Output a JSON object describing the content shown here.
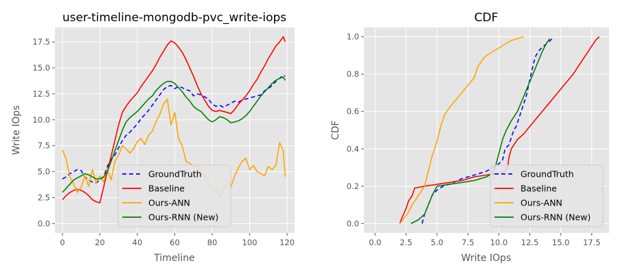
{
  "chart_data": [
    {
      "type": "line",
      "title": "user-timeline-mongodb-pvc_write-iops",
      "xlabel": "Timeline",
      "ylabel": "Write IOps",
      "xlim": [
        -4,
        124
      ],
      "ylim": [
        -0.9,
        18.9
      ],
      "xticks": [
        0,
        20,
        40,
        60,
        80,
        100,
        120
      ],
      "yticks": [
        0.0,
        2.5,
        5.0,
        7.5,
        10.0,
        12.5,
        15.0,
        17.5
      ],
      "ytick_labels": [
        "0.0",
        "2.5",
        "5.0",
        "7.5",
        "10.0",
        "12.5",
        "15.0",
        "17.5"
      ],
      "grid": true,
      "legend_position": "lower-center",
      "series": [
        {
          "name": "GroundTruth",
          "color": "#0000ff",
          "dash": "6,4",
          "x": [
            0,
            2,
            4,
            6,
            8,
            10,
            12,
            14,
            16,
            18,
            20,
            22,
            24,
            26,
            28,
            30,
            32,
            34,
            36,
            38,
            40,
            42,
            44,
            46,
            48,
            50,
            52,
            54,
            56,
            58,
            60,
            62,
            64,
            66,
            68,
            70,
            72,
            74,
            76,
            78,
            80,
            82,
            84,
            86,
            88,
            90,
            92,
            94,
            96,
            98,
            100,
            102,
            104,
            106,
            108,
            110,
            112,
            114,
            116,
            118,
            119
          ],
          "y": [
            4.3,
            4.5,
            4.8,
            5.0,
            5.2,
            5.1,
            4.5,
            4.2,
            4.0,
            3.9,
            4.2,
            4.5,
            5.5,
            6.2,
            6.6,
            7.3,
            8.0,
            8.5,
            8.8,
            9.2,
            9.6,
            10.1,
            10.5,
            10.9,
            11.4,
            11.9,
            12.4,
            12.9,
            13.2,
            13.3,
            13.0,
            13.2,
            13.1,
            12.9,
            12.8,
            12.3,
            12.5,
            12.4,
            12.2,
            12.0,
            11.5,
            11.3,
            11.4,
            11.2,
            11.4,
            11.6,
            11.8,
            11.7,
            11.9,
            12.0,
            12.1,
            12.2,
            12.3,
            12.4,
            12.8,
            13.0,
            13.3,
            13.7,
            14.0,
            14.3,
            14.2
          ]
        },
        {
          "name": "Baseline",
          "color": "#ff0000",
          "dash": "",
          "x": [
            0,
            2,
            4,
            6,
            8,
            10,
            12,
            14,
            16,
            18,
            20,
            22,
            24,
            26,
            28,
            30,
            32,
            34,
            36,
            38,
            40,
            42,
            44,
            46,
            48,
            50,
            52,
            54,
            56,
            58,
            60,
            62,
            64,
            66,
            68,
            70,
            72,
            74,
            76,
            78,
            80,
            82,
            84,
            86,
            88,
            90,
            92,
            94,
            96,
            98,
            100,
            102,
            104,
            106,
            108,
            110,
            112,
            114,
            116,
            118,
            119
          ],
          "y": [
            2.3,
            2.7,
            3.0,
            3.2,
            3.3,
            3.2,
            3.0,
            2.7,
            2.3,
            2.1,
            2.0,
            3.5,
            5.0,
            6.5,
            8.0,
            9.5,
            10.7,
            11.3,
            11.8,
            12.2,
            12.6,
            13.2,
            13.7,
            14.2,
            14.7,
            15.3,
            16.0,
            16.6,
            17.2,
            17.6,
            17.4,
            17.0,
            16.5,
            15.8,
            15.0,
            14.2,
            13.3,
            12.5,
            11.9,
            11.3,
            10.9,
            10.8,
            10.9,
            10.8,
            10.7,
            10.6,
            11.0,
            11.5,
            11.9,
            12.3,
            12.8,
            13.4,
            13.9,
            14.6,
            15.2,
            15.9,
            16.5,
            17.1,
            17.5,
            18.0,
            17.5
          ]
        },
        {
          "name": "Ours-ANN",
          "color": "#ffa500",
          "dash": "",
          "x": [
            0,
            2,
            4,
            6,
            8,
            10,
            12,
            14,
            16,
            18,
            20,
            22,
            24,
            26,
            28,
            30,
            32,
            34,
            36,
            38,
            40,
            42,
            44,
            46,
            48,
            50,
            52,
            54,
            56,
            58,
            60,
            62,
            64,
            66,
            68,
            70,
            72,
            74,
            76,
            78,
            80,
            82,
            84,
            86,
            88,
            90,
            92,
            94,
            96,
            98,
            100,
            102,
            104,
            106,
            108,
            110,
            112,
            114,
            116,
            118,
            119
          ],
          "y": [
            7.1,
            6.2,
            4.5,
            3.8,
            3.0,
            3.5,
            4.6,
            3.6,
            5.2,
            3.9,
            4.6,
            4.0,
            5.3,
            4.2,
            6.0,
            6.6,
            7.5,
            7.2,
            6.8,
            7.2,
            7.9,
            8.2,
            7.6,
            8.5,
            8.9,
            9.8,
            10.5,
            11.5,
            12.0,
            9.5,
            10.7,
            8.2,
            7.5,
            6.0,
            5.8,
            5.5,
            5.6,
            5.0,
            4.5,
            4.0,
            3.5,
            3.2,
            2.6,
            3.3,
            3.8,
            3.5,
            4.6,
            5.4,
            6.0,
            6.3,
            5.2,
            5.6,
            5.0,
            4.8,
            4.6,
            5.5,
            5.2,
            5.6,
            7.8,
            7.0,
            4.5
          ]
        },
        {
          "name": "Ours-RNN (New)",
          "color": "#008000",
          "dash": "",
          "x": [
            0,
            2,
            4,
            6,
            8,
            10,
            12,
            14,
            16,
            18,
            20,
            22,
            24,
            26,
            28,
            30,
            32,
            34,
            36,
            38,
            40,
            42,
            44,
            46,
            48,
            50,
            52,
            54,
            56,
            58,
            60,
            62,
            64,
            66,
            68,
            70,
            72,
            74,
            76,
            78,
            80,
            82,
            84,
            86,
            88,
            90,
            92,
            94,
            96,
            98,
            100,
            102,
            104,
            106,
            108,
            110,
            112,
            114,
            116,
            118,
            119
          ],
          "y": [
            3.0,
            3.4,
            3.8,
            4.2,
            4.4,
            4.6,
            4.8,
            4.7,
            4.5,
            4.3,
            4.3,
            4.5,
            5.0,
            6.0,
            7.0,
            8.0,
            9.0,
            9.8,
            10.2,
            10.5,
            10.8,
            11.2,
            11.6,
            12.0,
            12.3,
            12.8,
            13.2,
            13.5,
            13.7,
            13.7,
            13.5,
            13.1,
            12.7,
            12.2,
            11.8,
            11.3,
            11.0,
            10.8,
            10.4,
            10.0,
            9.8,
            10.0,
            10.3,
            10.2,
            10.0,
            9.7,
            9.8,
            9.9,
            10.1,
            10.4,
            10.8,
            11.3,
            11.8,
            12.3,
            12.7,
            13.1,
            13.5,
            13.8,
            14.0,
            14.1,
            13.8
          ]
        }
      ]
    },
    {
      "type": "line",
      "title": "CDF",
      "xlabel": "Write IOps",
      "ylabel": "CDF",
      "xlim": [
        -0.9,
        18.9
      ],
      "ylim": [
        -0.05,
        1.05
      ],
      "xticks": [
        0.0,
        2.5,
        5.0,
        7.5,
        10.0,
        12.5,
        15.0,
        17.5
      ],
      "xtick_labels": [
        "0.0",
        "2.5",
        "5.0",
        "7.5",
        "10.0",
        "12.5",
        "15.0",
        "17.5"
      ],
      "yticks": [
        0.0,
        0.2,
        0.4,
        0.6,
        0.8,
        1.0
      ],
      "ytick_labels": [
        "0.0",
        "0.2",
        "0.4",
        "0.6",
        "0.8",
        "1.0"
      ],
      "grid": true,
      "legend_position": "lower-right",
      "series": [
        {
          "name": "GroundTruth",
          "color": "#0000ff",
          "dash": "6,4",
          "x": [
            3.8,
            4.0,
            4.3,
            4.6,
            5.0,
            5.5,
            6.0,
            7.0,
            8.0,
            9.0,
            9.5,
            10.0,
            10.3,
            10.5,
            10.8,
            11.0,
            11.2,
            11.4,
            11.6,
            11.8,
            12.0,
            12.2,
            12.4,
            12.6,
            12.8,
            13.0,
            13.3,
            13.6,
            14.0,
            14.3
          ],
          "y": [
            0.0,
            0.05,
            0.1,
            0.15,
            0.18,
            0.2,
            0.21,
            0.24,
            0.26,
            0.28,
            0.3,
            0.32,
            0.34,
            0.4,
            0.42,
            0.46,
            0.5,
            0.52,
            0.56,
            0.6,
            0.64,
            0.68,
            0.74,
            0.8,
            0.86,
            0.9,
            0.93,
            0.95,
            0.97,
            0.99
          ]
        },
        {
          "name": "Baseline",
          "color": "#ff0000",
          "dash": "",
          "x": [
            2.0,
            2.1,
            2.3,
            2.5,
            2.7,
            3.0,
            3.2,
            4.0,
            5.0,
            6.0,
            7.0,
            8.0,
            9.0,
            10.0,
            10.5,
            10.7,
            10.8,
            11.0,
            11.5,
            12.0,
            12.5,
            13.0,
            13.5,
            14.0,
            14.5,
            15.0,
            15.5,
            16.0,
            16.5,
            17.0,
            17.5,
            17.8,
            18.1
          ],
          "y": [
            0.0,
            0.02,
            0.05,
            0.08,
            0.12,
            0.15,
            0.19,
            0.2,
            0.21,
            0.22,
            0.23,
            0.25,
            0.26,
            0.27,
            0.28,
            0.3,
            0.35,
            0.4,
            0.45,
            0.48,
            0.52,
            0.56,
            0.6,
            0.64,
            0.68,
            0.72,
            0.76,
            0.8,
            0.85,
            0.9,
            0.95,
            0.98,
            1.0
          ]
        },
        {
          "name": "Ours-ANN",
          "color": "#ffa500",
          "dash": "",
          "x": [
            2.0,
            2.6,
            3.0,
            3.5,
            4.0,
            4.3,
            4.6,
            5.0,
            5.3,
            5.6,
            6.0,
            6.5,
            7.0,
            7.5,
            8.0,
            8.3,
            8.7,
            9.0,
            9.5,
            10.0,
            10.5,
            11.0,
            11.5,
            12.0
          ],
          "y": [
            0.0,
            0.05,
            0.1,
            0.15,
            0.2,
            0.28,
            0.36,
            0.44,
            0.52,
            0.58,
            0.62,
            0.66,
            0.7,
            0.74,
            0.78,
            0.84,
            0.88,
            0.9,
            0.92,
            0.94,
            0.96,
            0.98,
            0.99,
            1.0
          ]
        },
        {
          "name": "Ours-RNN (New)",
          "color": "#008000",
          "dash": "",
          "x": [
            2.9,
            3.5,
            4.0,
            4.3,
            4.6,
            5.0,
            6.0,
            7.0,
            8.0,
            9.0,
            9.5,
            9.7,
            9.9,
            10.1,
            10.3,
            10.6,
            11.0,
            11.5,
            12.0,
            12.5,
            13.0,
            13.5,
            13.8,
            14.1
          ],
          "y": [
            0.0,
            0.02,
            0.05,
            0.1,
            0.15,
            0.2,
            0.21,
            0.22,
            0.23,
            0.25,
            0.27,
            0.3,
            0.35,
            0.4,
            0.45,
            0.5,
            0.55,
            0.6,
            0.68,
            0.76,
            0.84,
            0.92,
            0.96,
            0.99
          ]
        }
      ]
    }
  ]
}
